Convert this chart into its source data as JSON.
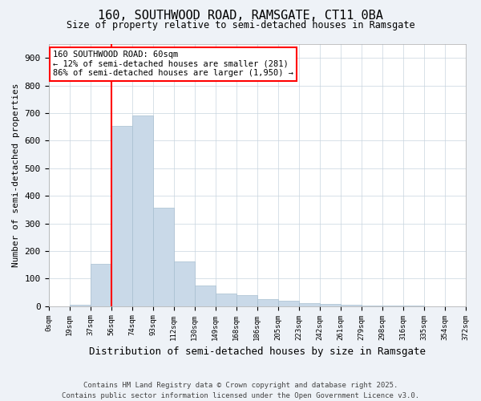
{
  "title1": "160, SOUTHWOOD ROAD, RAMSGATE, CT11 0BA",
  "title2": "Size of property relative to semi-detached houses in Ramsgate",
  "xlabel": "Distribution of semi-detached houses by size in Ramsgate",
  "ylabel": "Number of semi-detached properties",
  "bins": [
    "0sqm",
    "19sqm",
    "37sqm",
    "56sqm",
    "74sqm",
    "93sqm",
    "112sqm",
    "130sqm",
    "149sqm",
    "168sqm",
    "186sqm",
    "205sqm",
    "223sqm",
    "242sqm",
    "261sqm",
    "279sqm",
    "298sqm",
    "316sqm",
    "335sqm",
    "354sqm",
    "372sqm"
  ],
  "values": [
    0,
    5,
    152,
    653,
    692,
    357,
    163,
    75,
    47,
    39,
    25,
    20,
    12,
    8,
    5,
    3,
    2,
    1,
    0,
    0
  ],
  "bar_color": "#c9d9e8",
  "bar_edge_color": "#a8bfd0",
  "red_line_x": 3,
  "annotation_title": "160 SOUTHWOOD ROAD: 60sqm",
  "annotation_line1": "← 12% of semi-detached houses are smaller (281)",
  "annotation_line2": "86% of semi-detached houses are larger (1,950) →",
  "ylim": [
    0,
    950
  ],
  "yticks": [
    0,
    100,
    200,
    300,
    400,
    500,
    600,
    700,
    800,
    900
  ],
  "footer1": "Contains HM Land Registry data © Crown copyright and database right 2025.",
  "footer2": "Contains public sector information licensed under the Open Government Licence v3.0.",
  "bg_color": "#eef2f7",
  "plot_bg_color": "#ffffff"
}
